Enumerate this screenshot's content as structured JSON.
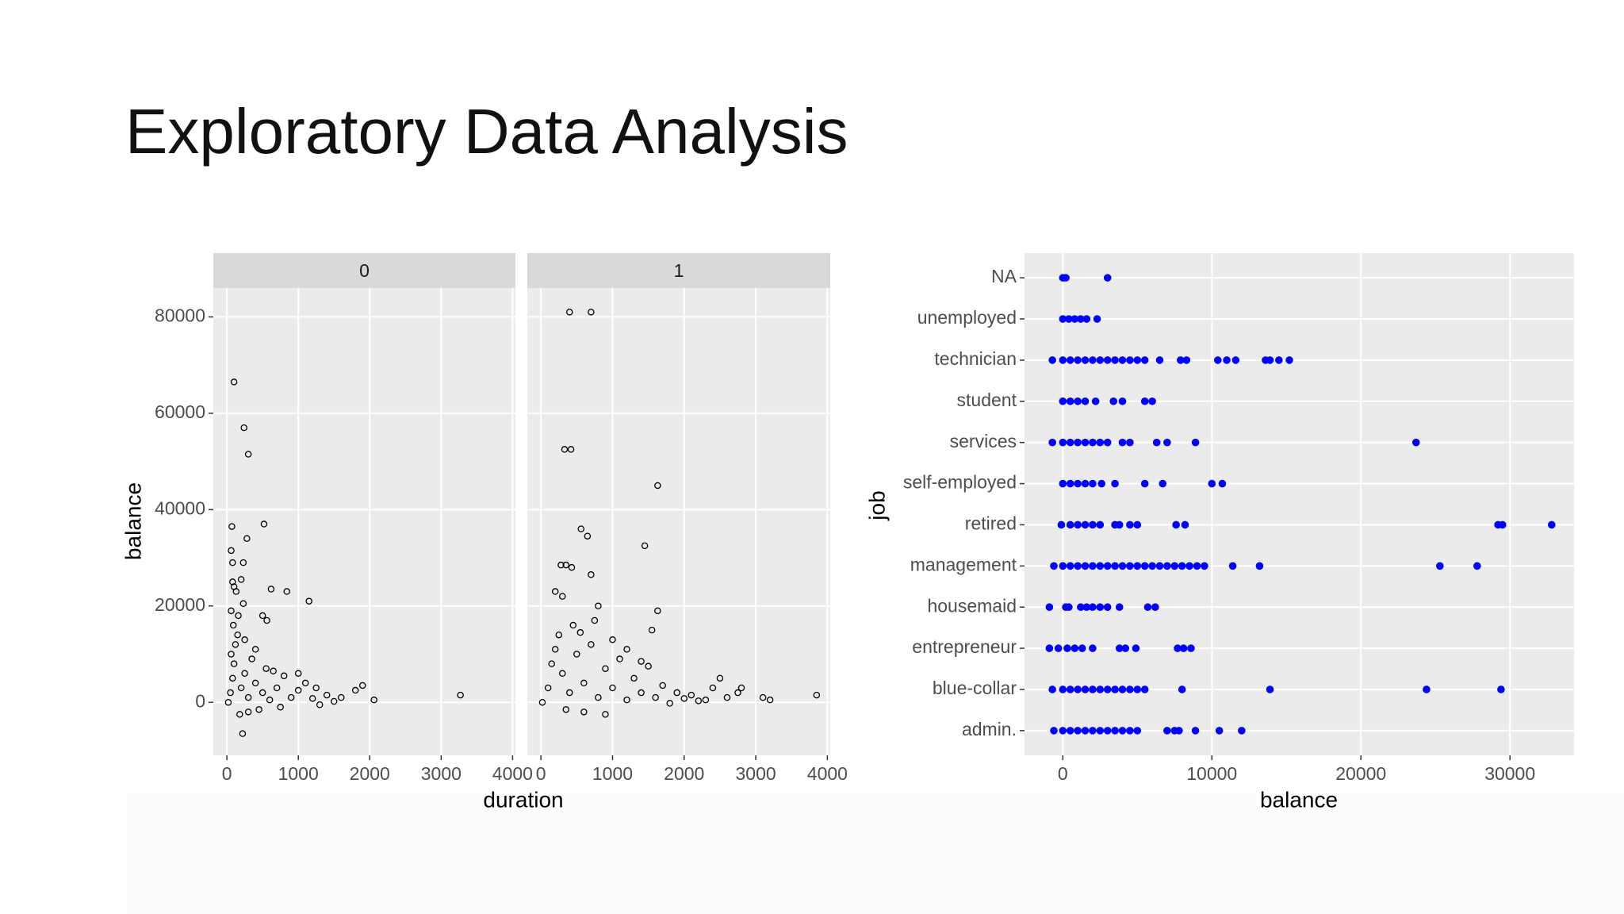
{
  "slide": {
    "title": "Exploratory Data Analysis"
  },
  "chart_data": [
    {
      "type": "facet-scatter",
      "x_label": "duration",
      "y_label": "balance",
      "xlim": [
        -190,
        4040
      ],
      "ylim": [
        -11000,
        86000
      ],
      "xticks": [
        0,
        1000,
        2000,
        3000,
        4000
      ],
      "yticks": [
        0,
        20000,
        40000,
        60000,
        80000
      ],
      "grid": true,
      "color": "#000000",
      "panels": [
        {
          "label": "0",
          "x": [
            100,
            240,
            300,
            70,
            520,
            280,
            60,
            80,
            230,
            80,
            200,
            100,
            130,
            620,
            840,
            1150,
            60,
            230,
            500,
            560,
            3270,
            2060,
            1800,
            1900,
            1600,
            220,
            20,
            50,
            80,
            100,
            120,
            150,
            60,
            200,
            250,
            300,
            350,
            400,
            450,
            500,
            550,
            600,
            700,
            800,
            900,
            1000,
            1100,
            1200,
            1300,
            1400,
            1500,
            180,
            300,
            90,
            160,
            250,
            400,
            650,
            750,
            1000,
            1250
          ],
          "y": [
            66500,
            57000,
            51500,
            36500,
            37000,
            34000,
            31500,
            29000,
            29000,
            25000,
            25500,
            24000,
            23000,
            23500,
            23000,
            21000,
            19000,
            20500,
            18000,
            17000,
            1500,
            500,
            2500,
            3500,
            1000,
            -6500,
            0,
            2000,
            5000,
            8000,
            12000,
            14000,
            10000,
            3000,
            6000,
            1000,
            9000,
            4000,
            -1500,
            2000,
            7000,
            500,
            3000,
            5500,
            1000,
            2500,
            4000,
            800,
            -500,
            1500,
            200,
            -2500,
            -2000,
            16000,
            18000,
            13000,
            11000,
            6500,
            -1000,
            6000,
            3000
          ]
        },
        {
          "label": "1",
          "x": [
            400,
            700,
            330,
            420,
            1630,
            560,
            650,
            1450,
            280,
            350,
            430,
            700,
            200,
            300,
            800,
            1630,
            1550,
            3850,
            3100,
            3200,
            2800,
            2500,
            2400,
            2750,
            900,
            20,
            100,
            150,
            200,
            250,
            300,
            400,
            500,
            600,
            700,
            800,
            900,
            1000,
            1100,
            1200,
            1300,
            1400,
            1500,
            1600,
            1700,
            1800,
            1900,
            2000,
            2100,
            2200,
            350,
            600,
            450,
            550,
            750,
            1000,
            1200,
            1400,
            2300,
            2600
          ],
          "y": [
            81000,
            81000,
            52500,
            52500,
            45000,
            36000,
            34500,
            32500,
            28500,
            28500,
            28000,
            26500,
            23000,
            22000,
            20000,
            19000,
            15000,
            1500,
            1000,
            500,
            3000,
            5000,
            3000,
            2000,
            -2500,
            0,
            3000,
            8000,
            11000,
            14000,
            6000,
            2000,
            10000,
            4000,
            12000,
            1000,
            7000,
            3000,
            9000,
            500,
            5000,
            2000,
            7500,
            1000,
            3500,
            -200,
            2000,
            800,
            1500,
            300,
            -1500,
            -2000,
            16000,
            14500,
            17000,
            13000,
            11000,
            8500,
            500,
            1000
          ]
        }
      ]
    },
    {
      "type": "strip",
      "x_label": "balance",
      "y_label": "job",
      "categories": [
        "admin.",
        "blue-collar",
        "entrepreneur",
        "housemaid",
        "management",
        "retired",
        "self-employed",
        "services",
        "student",
        "technician",
        "unemployed",
        "NA"
      ],
      "values": [
        [
          -600,
          0,
          500,
          1000,
          1500,
          2000,
          2500,
          3000,
          3500,
          4000,
          4500,
          5000,
          7000,
          7500,
          7800,
          8900,
          10500,
          12000
        ],
        [
          -700,
          0,
          500,
          1000,
          1500,
          2000,
          2500,
          3000,
          3500,
          4000,
          4500,
          5000,
          5500,
          8000,
          13900,
          24400,
          29400
        ],
        [
          -900,
          -300,
          300,
          800,
          1300,
          2000,
          3800,
          4200,
          4900,
          7700,
          8100,
          8600
        ],
        [
          -900,
          200,
          400,
          1200,
          1600,
          2000,
          2500,
          3000,
          3800,
          5700,
          6200
        ],
        [
          -600,
          0,
          500,
          1000,
          1500,
          2000,
          2500,
          3000,
          3500,
          4000,
          4500,
          5000,
          5500,
          6000,
          6500,
          7000,
          7500,
          8000,
          8500,
          9000,
          9500,
          11400,
          13200,
          25300,
          27800
        ],
        [
          -100,
          500,
          1000,
          1500,
          2000,
          2500,
          3500,
          3800,
          4500,
          5000,
          7600,
          8200,
          29200,
          29500,
          32800
        ],
        [
          0,
          500,
          1000,
          1500,
          2000,
          2600,
          3500,
          5500,
          6700,
          10000,
          10700
        ],
        [
          -700,
          0,
          500,
          1000,
          1500,
          2000,
          2500,
          3000,
          4000,
          4500,
          6300,
          7000,
          8900,
          23700
        ],
        [
          0,
          500,
          1000,
          1500,
          2200,
          3400,
          4000,
          5500,
          6000
        ],
        [
          -700,
          0,
          500,
          1000,
          1500,
          2000,
          2500,
          3000,
          3500,
          4000,
          4500,
          5000,
          5500,
          6500,
          7900,
          8300,
          10400,
          11000,
          11600,
          13600,
          13900,
          14500,
          15200
        ],
        [
          0,
          400,
          800,
          1200,
          1600,
          2300
        ],
        [
          0,
          200,
          3000
        ]
      ],
      "color": "#0000ff",
      "xlim": [
        -2570,
        34300
      ],
      "xticks": [
        0,
        10000,
        20000,
        30000
      ],
      "grid": true
    }
  ]
}
